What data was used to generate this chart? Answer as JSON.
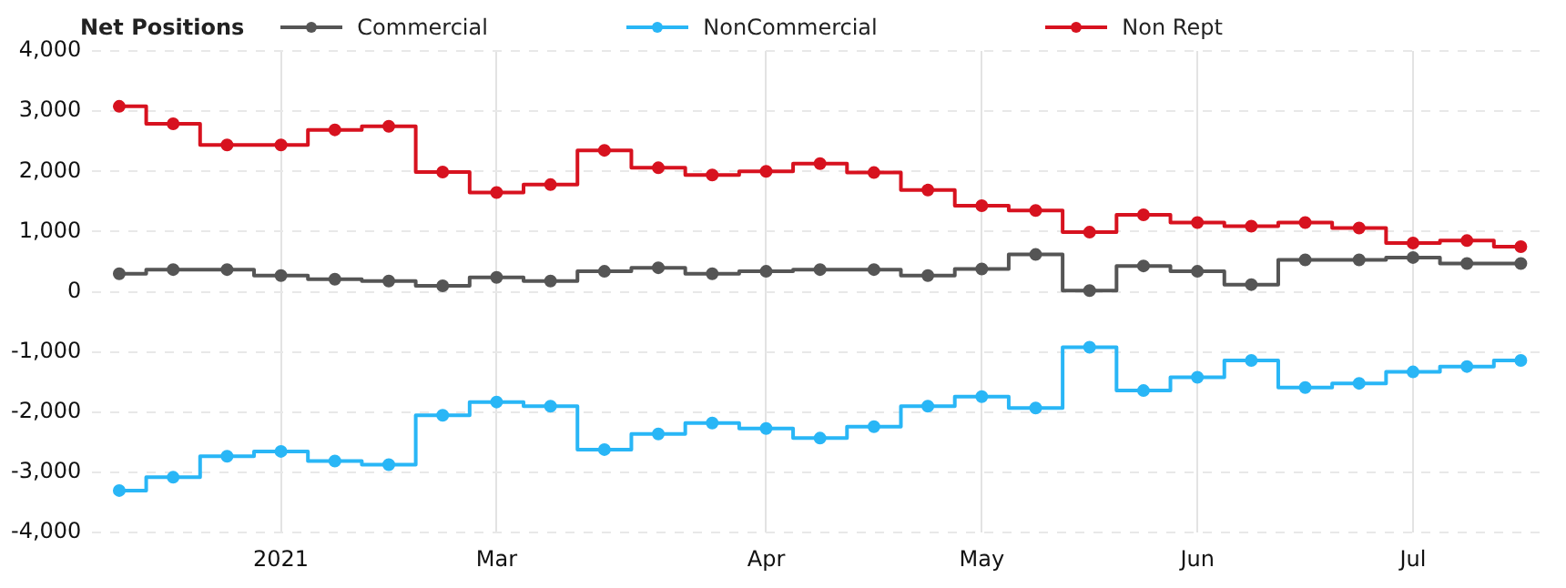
{
  "chart_data": {
    "type": "step",
    "legend_title": "Net Positions",
    "categories": [
      null,
      null,
      null,
      "2021",
      null,
      null,
      null,
      "Mar",
      null,
      null,
      null,
      null,
      "Apr",
      null,
      null,
      null,
      "May",
      null,
      null,
      null,
      "Jun",
      null,
      null,
      null,
      "Jul",
      null,
      null
    ],
    "series": [
      {
        "name": "Commercial",
        "color": "#555555",
        "values": [
          300,
          370,
          370,
          270,
          210,
          180,
          100,
          240,
          180,
          340,
          400,
          300,
          340,
          370,
          370,
          270,
          380,
          620,
          20,
          430,
          340,
          120,
          530,
          530,
          570,
          470,
          470
        ]
      },
      {
        "name": "NonCommercial",
        "color": "#29b6f6",
        "values": [
          -3300,
          -3080,
          -2730,
          -2650,
          -2810,
          -2870,
          -2050,
          -1830,
          -1900,
          -2620,
          -2360,
          -2180,
          -2270,
          -2430,
          -2240,
          -1900,
          -1740,
          -1930,
          -920,
          -1640,
          -1420,
          -1140,
          -1590,
          -1520,
          -1330,
          -1240,
          -1140
        ]
      },
      {
        "name": "Non Rept",
        "color": "#d7121f",
        "values": [
          3080,
          2790,
          2440,
          2440,
          2690,
          2750,
          1990,
          1650,
          1780,
          2350,
          2060,
          1940,
          2000,
          2130,
          1980,
          1690,
          1430,
          1350,
          990,
          1280,
          1150,
          1090,
          1150,
          1060,
          810,
          850,
          750
        ]
      }
    ],
    "ylim": [
      -4000,
      4000
    ],
    "yticks": [
      {
        "value": -4000,
        "label": "-4,000"
      },
      {
        "value": -3000,
        "label": "-3,000"
      },
      {
        "value": -2000,
        "label": "-2,000"
      },
      {
        "value": -1000,
        "label": "-1,000"
      },
      {
        "value": 0,
        "label": "0"
      },
      {
        "value": 1000,
        "label": "1,000"
      },
      {
        "value": 2000,
        "label": "2,000"
      },
      {
        "value": 3000,
        "label": "3,000"
      },
      {
        "value": 4000,
        "label": "4,000"
      }
    ],
    "grid": true,
    "legend": "top",
    "marker": "circle",
    "line_style": "solid"
  }
}
